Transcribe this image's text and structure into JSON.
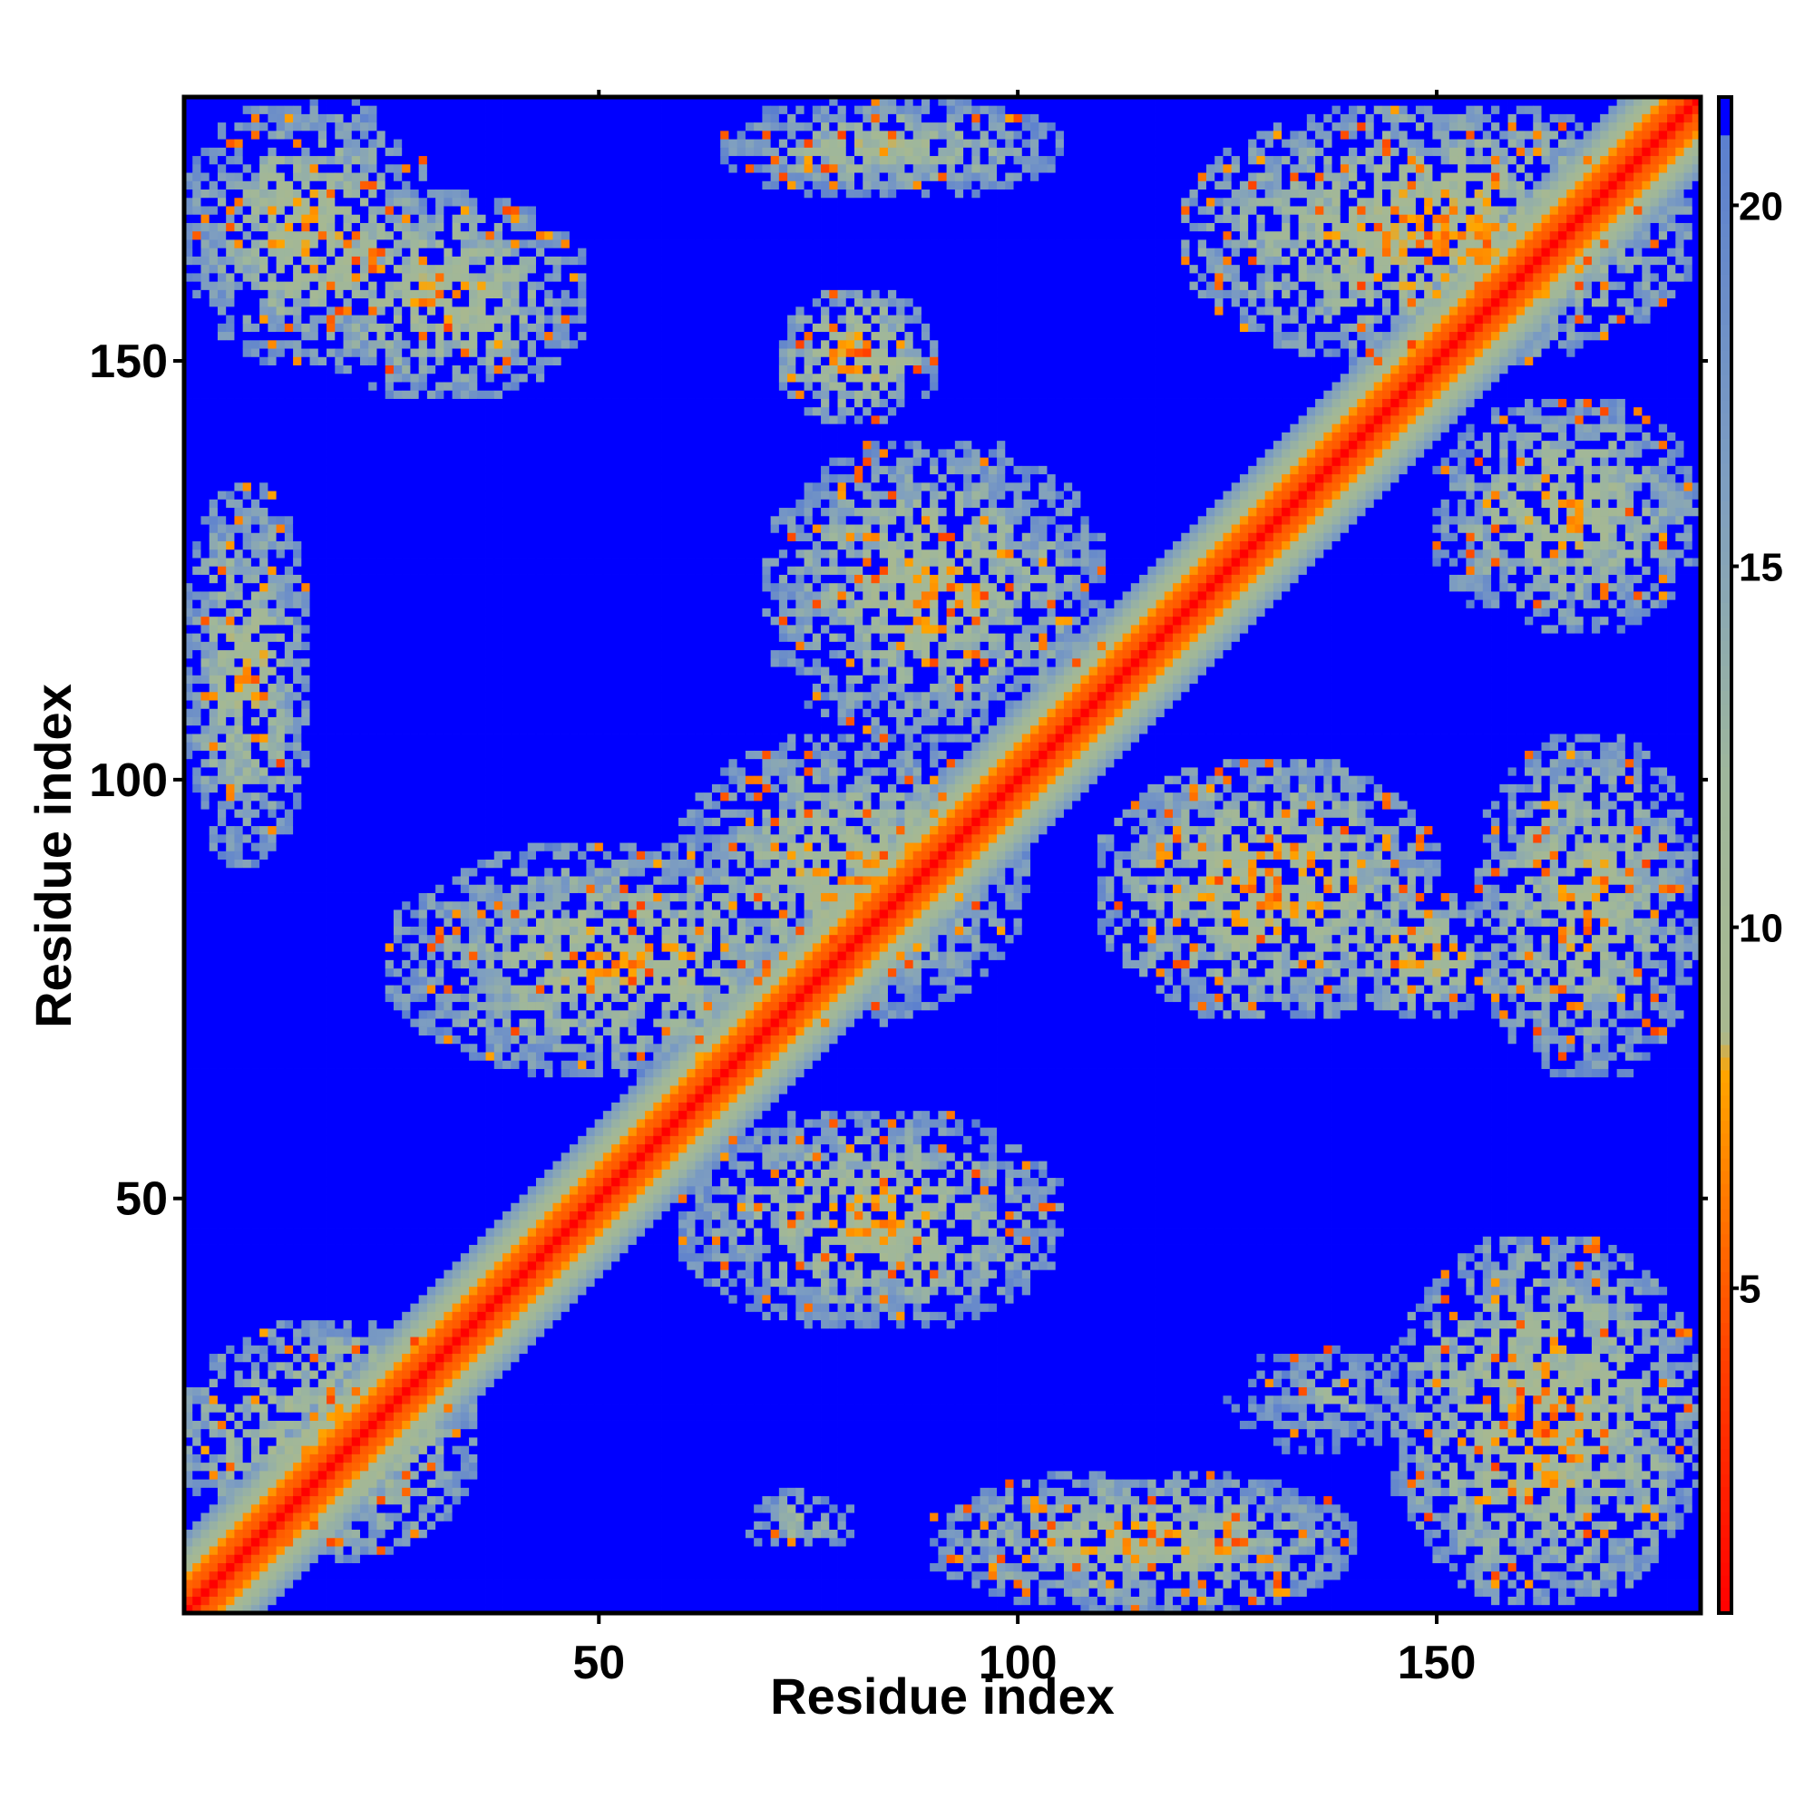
{
  "chart_data": {
    "type": "heatmap",
    "title": "",
    "xlabel": "Residue index",
    "ylabel": "Residue index",
    "n_residues": 181,
    "xlim": [
      1,
      181
    ],
    "ylim": [
      1,
      181
    ],
    "x_ticks": [
      50,
      100,
      150
    ],
    "y_ticks": [
      50,
      100,
      150
    ],
    "colorbar": {
      "ticks": [
        5,
        10,
        15,
        20
      ],
      "range": [
        0.5,
        21.5
      ],
      "cutoff": 21,
      "stops": [
        {
          "value": 0.5,
          "color": "#ff0000"
        },
        {
          "value": 4.0,
          "color": "#ff4000"
        },
        {
          "value": 6.5,
          "color": "#ff8000"
        },
        {
          "value": 8.0,
          "color": "#ffa500"
        },
        {
          "value": 8.5,
          "color": "#a8b890"
        },
        {
          "value": 12.0,
          "color": "#9fb79b"
        },
        {
          "value": 16.0,
          "color": "#7f9fc0"
        },
        {
          "value": 21.0,
          "color": "#5b7fcf"
        }
      ],
      "beyond_color": "#0000ff"
    },
    "diagonal": {
      "band_width_residues": 9,
      "core_distance": 3.8
    },
    "contact_blocks": [
      {
        "x": [
          1,
          30
        ],
        "y": [
          150,
          181
        ],
        "min": 8
      },
      {
        "x": [
          15,
          48
        ],
        "y": [
          146,
          170
        ],
        "min": 8
      },
      {
        "x": [
          65,
          105
        ],
        "y": [
          170,
          181
        ],
        "min": 9
      },
      {
        "x": [
          120,
          180
        ],
        "y": [
          150,
          180
        ],
        "min": 7
      },
      {
        "x": [
          72,
          90
        ],
        "y": [
          143,
          158
        ],
        "min": 7
      },
      {
        "x": [
          70,
          110
        ],
        "y": [
          105,
          140
        ],
        "min": 8
      },
      {
        "x": [
          1,
          15
        ],
        "y": [
          90,
          135
        ],
        "min": 8
      },
      {
        "x": [
          25,
          80
        ],
        "y": [
          65,
          92
        ],
        "min": 8
      },
      {
        "x": [
          60,
          100
        ],
        "y": [
          72,
          105
        ],
        "min": 8
      },
      {
        "x": [
          60,
          105
        ],
        "y": [
          35,
          60
        ],
        "min": 8
      },
      {
        "x": [
          1,
          35
        ],
        "y": [
          8,
          35
        ],
        "min": 7
      },
      {
        "x": [
          110,
          150
        ],
        "y": [
          72,
          102
        ],
        "min": 7
      },
      {
        "x": [
          140,
          157
        ],
        "y": [
          72,
          86
        ],
        "min": 7
      },
      {
        "x": [
          155,
          181
        ],
        "y": [
          65,
          105
        ],
        "min": 8
      },
      {
        "x": [
          150,
          181
        ],
        "y": [
          118,
          145
        ],
        "min": 8
      },
      {
        "x": [
          145,
          181
        ],
        "y": [
          2,
          45
        ],
        "min": 7
      },
      {
        "x": [
          90,
          140
        ],
        "y": [
          1,
          17
        ],
        "min": 8
      },
      {
        "x": [
          68,
          80
        ],
        "y": [
          8,
          15
        ],
        "min": 10
      },
      {
        "x": [
          125,
          150
        ],
        "y": [
          20,
          32
        ],
        "min": 12
      }
    ]
  }
}
